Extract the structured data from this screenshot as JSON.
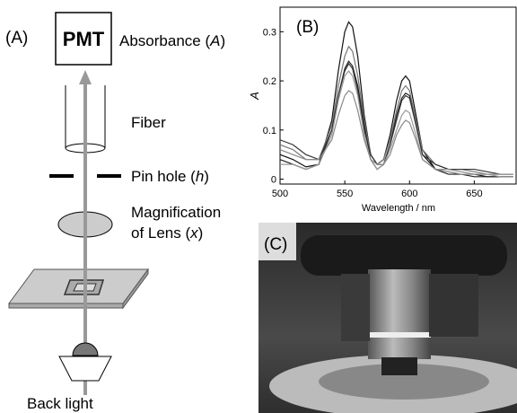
{
  "panel_a": {
    "label": "(A)",
    "detector": "PMT",
    "absorbance": [
      "Absorbance (",
      "A",
      ")"
    ],
    "fiber": "Fiber",
    "pinhole": [
      "Pin hole (",
      "h",
      ")"
    ],
    "lens": [
      "Magnification",
      "of Lens (",
      "x",
      ")"
    ],
    "light": "Back light"
  },
  "chart_data": {
    "type": "line",
    "panel_label": "(B)",
    "xlabel": "Wavelength / nm",
    "ylabel": "A",
    "x": [
      500,
      510,
      520,
      530,
      540,
      545,
      550,
      553,
      556,
      560,
      565,
      570,
      575,
      580,
      585,
      590,
      594,
      597,
      600,
      605,
      610,
      620,
      630,
      640,
      650,
      660,
      670,
      680
    ],
    "series": [
      {
        "color": "#111111",
        "values": [
          0.05,
          0.04,
          0.025,
          0.03,
          0.12,
          0.22,
          0.3,
          0.32,
          0.31,
          0.25,
          0.13,
          0.05,
          0.03,
          0.04,
          0.09,
          0.16,
          0.2,
          0.21,
          0.2,
          0.13,
          0.06,
          0.02,
          0.015,
          0.01,
          0.01,
          0.005,
          0.005,
          0.005
        ]
      },
      {
        "color": "#777777",
        "values": [
          0.07,
          0.06,
          0.04,
          0.04,
          0.11,
          0.19,
          0.25,
          0.27,
          0.26,
          0.21,
          0.12,
          0.05,
          0.03,
          0.04,
          0.08,
          0.14,
          0.18,
          0.19,
          0.18,
          0.12,
          0.06,
          0.03,
          0.02,
          0.02,
          0.015,
          0.01,
          0.01,
          0.01
        ]
      },
      {
        "color": "#222222",
        "values": [
          0.04,
          0.03,
          0.02,
          0.03,
          0.1,
          0.17,
          0.225,
          0.24,
          0.23,
          0.19,
          0.11,
          0.04,
          0.02,
          0.03,
          0.07,
          0.13,
          0.165,
          0.175,
          0.17,
          0.11,
          0.05,
          0.02,
          0.01,
          0.01,
          0.005,
          0.005,
          0.005,
          0.005
        ]
      },
      {
        "color": "#333333",
        "values": [
          0.08,
          0.07,
          0.05,
          0.04,
          0.1,
          0.17,
          0.22,
          0.235,
          0.225,
          0.18,
          0.1,
          0.05,
          0.03,
          0.03,
          0.07,
          0.12,
          0.16,
          0.17,
          0.165,
          0.11,
          0.05,
          0.03,
          0.02,
          0.02,
          0.02,
          0.015,
          0.01,
          0.01
        ]
      },
      {
        "color": "#999999",
        "values": [
          0.03,
          0.03,
          0.02,
          0.03,
          0.09,
          0.16,
          0.21,
          0.22,
          0.21,
          0.17,
          0.09,
          0.04,
          0.02,
          0.03,
          0.06,
          0.1,
          0.13,
          0.14,
          0.135,
          0.09,
          0.04,
          0.02,
          0.015,
          0.01,
          0.01,
          0.01,
          0.005,
          0.005
        ]
      },
      {
        "color": "#888888",
        "values": [
          0.06,
          0.05,
          0.04,
          0.04,
          0.08,
          0.13,
          0.17,
          0.18,
          0.175,
          0.14,
          0.08,
          0.04,
          0.03,
          0.03,
          0.05,
          0.09,
          0.11,
          0.12,
          0.115,
          0.08,
          0.04,
          0.02,
          0.02,
          0.015,
          0.01,
          0.01,
          0.01,
          0.01
        ]
      }
    ],
    "xlim": [
      500,
      683
    ],
    "ylim": [
      -0.01,
      0.35
    ],
    "xticks": [
      500,
      550,
      600,
      650
    ],
    "yticks": [
      0,
      0.1,
      0.2,
      0.3
    ]
  },
  "panel_c": {
    "label": "(C)"
  }
}
